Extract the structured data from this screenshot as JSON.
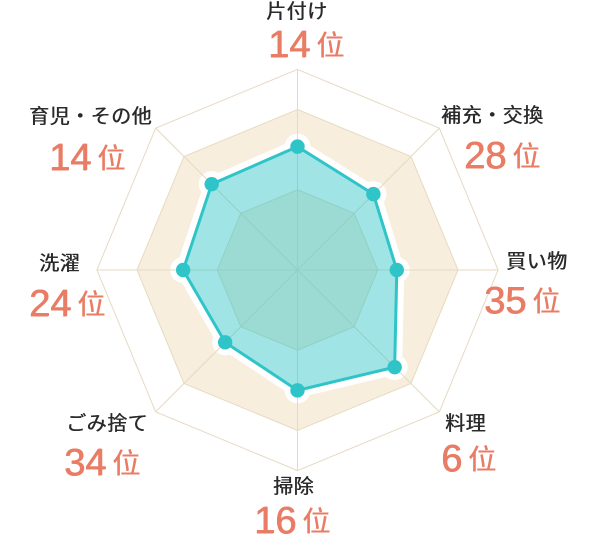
{
  "chart_data": {
    "type": "radar",
    "title": "",
    "categories": [
      "片付け",
      "補充・交換",
      "買い物",
      "料理",
      "掃除",
      "ごみ捨て",
      "洗濯",
      "育児・その他"
    ],
    "values": [
      14,
      28,
      35,
      6,
      16,
      34,
      24,
      14
    ],
    "unit": "位",
    "radius_fractions": [
      0.615,
      0.535,
      0.495,
      0.685,
      0.6,
      0.51,
      0.57,
      0.605
    ],
    "grid_rings": [
      0.4,
      0.8,
      1.0
    ],
    "axes_count": 8,
    "colors": {
      "series_fill": "rgba(44,196,199,0.45)",
      "series_stroke": "#2fc4c8",
      "band_fill": "#f7eedd",
      "grid_stroke": "#e6dac2",
      "halo": "#ffffff",
      "rank_text": "#e97c64",
      "category_text": "#2a2a2a"
    }
  },
  "labels": [
    {
      "name": "片付け",
      "rank": "14",
      "unit": "位"
    },
    {
      "name": "補充・交換",
      "rank": "28",
      "unit": "位"
    },
    {
      "name": "買い物",
      "rank": "35",
      "unit": "位"
    },
    {
      "name": "料理",
      "rank": "6",
      "unit": "位"
    },
    {
      "name": "掃除",
      "rank": "16",
      "unit": "位"
    },
    {
      "name": "ごみ捨て",
      "rank": "34",
      "unit": "位"
    },
    {
      "name": "洗濯",
      "rank": "24",
      "unit": "位"
    },
    {
      "name": "育児・その他",
      "rank": "14",
      "unit": "位"
    }
  ]
}
